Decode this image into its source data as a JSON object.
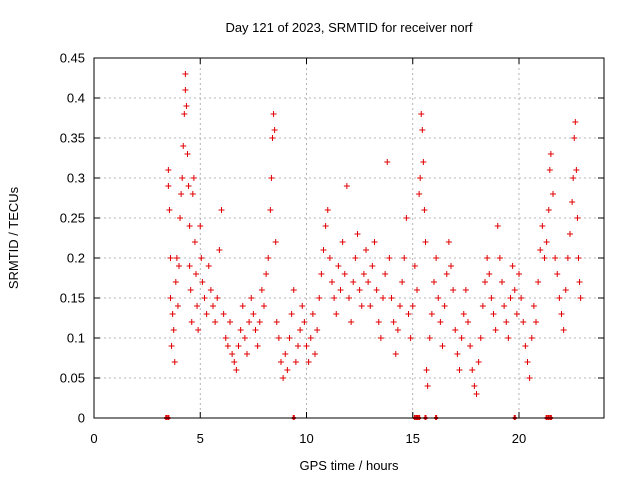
{
  "chart_data": {
    "type": "scatter",
    "title": "Day 121 of 2023, SRMTID for receiver norf",
    "xlabel": "GPS time / hours",
    "ylabel": "SRMTID / TECUs",
    "xlim": [
      0,
      24
    ],
    "ylim": [
      0,
      0.45
    ],
    "x_ticks": [
      "0",
      "5",
      "10",
      "15",
      "20"
    ],
    "y_ticks": [
      "0",
      "0.05",
      "0.1",
      "0.15",
      "0.2",
      "0.25",
      "0.3",
      "0.35",
      "0.4",
      "0.45"
    ],
    "grid": true,
    "marker": "+",
    "color": "#e00000",
    "zero_points_x": [
      3.4,
      3.5,
      9.4,
      15.1,
      15.2,
      15.3,
      15.6,
      16.1,
      19.8,
      21.3,
      21.4,
      21.5
    ],
    "series": [
      {
        "points": [
          [
            3.5,
            0.31
          ],
          [
            3.5,
            0.29
          ],
          [
            3.55,
            0.26
          ],
          [
            3.6,
            0.2
          ],
          [
            3.6,
            0.15
          ],
          [
            3.65,
            0.09
          ],
          [
            3.7,
            0.13
          ],
          [
            3.75,
            0.11
          ],
          [
            3.8,
            0.07
          ],
          [
            3.85,
            0.17
          ],
          [
            3.9,
            0.2
          ],
          [
            3.95,
            0.14
          ],
          [
            4.0,
            0.19
          ],
          [
            4.05,
            0.25
          ],
          [
            4.1,
            0.28
          ],
          [
            4.15,
            0.3
          ],
          [
            4.2,
            0.34
          ],
          [
            4.25,
            0.38
          ],
          [
            4.3,
            0.43
          ],
          [
            4.3,
            0.41
          ],
          [
            4.35,
            0.39
          ],
          [
            4.4,
            0.33
          ],
          [
            4.45,
            0.29
          ],
          [
            4.5,
            0.24
          ],
          [
            4.5,
            0.19
          ],
          [
            4.55,
            0.16
          ],
          [
            4.6,
            0.12
          ],
          [
            4.65,
            0.28
          ],
          [
            4.7,
            0.3
          ],
          [
            4.75,
            0.22
          ],
          [
            4.8,
            0.18
          ],
          [
            4.85,
            0.14
          ],
          [
            4.9,
            0.11
          ],
          [
            5.0,
            0.24
          ],
          [
            5.05,
            0.2
          ],
          [
            5.1,
            0.17
          ],
          [
            5.2,
            0.15
          ],
          [
            5.3,
            0.13
          ],
          [
            5.4,
            0.19
          ],
          [
            5.5,
            0.16
          ],
          [
            5.6,
            0.14
          ],
          [
            5.7,
            0.12
          ],
          [
            5.8,
            0.15
          ],
          [
            5.9,
            0.21
          ],
          [
            6.0,
            0.26
          ],
          [
            6.1,
            0.13
          ],
          [
            6.2,
            0.1
          ],
          [
            6.3,
            0.09
          ],
          [
            6.4,
            0.12
          ],
          [
            6.5,
            0.08
          ],
          [
            6.6,
            0.07
          ],
          [
            6.7,
            0.06
          ],
          [
            6.8,
            0.09
          ],
          [
            6.9,
            0.11
          ],
          [
            7.0,
            0.14
          ],
          [
            7.1,
            0.1
          ],
          [
            7.2,
            0.08
          ],
          [
            7.3,
            0.12
          ],
          [
            7.4,
            0.15
          ],
          [
            7.5,
            0.13
          ],
          [
            7.6,
            0.11
          ],
          [
            7.7,
            0.09
          ],
          [
            7.8,
            0.12
          ],
          [
            7.9,
            0.16
          ],
          [
            8.0,
            0.14
          ],
          [
            8.1,
            0.18
          ],
          [
            8.2,
            0.2
          ],
          [
            8.3,
            0.26
          ],
          [
            8.35,
            0.3
          ],
          [
            8.4,
            0.35
          ],
          [
            8.45,
            0.38
          ],
          [
            8.5,
            0.36
          ],
          [
            8.55,
            0.22
          ],
          [
            8.6,
            0.12
          ],
          [
            8.7,
            0.1
          ],
          [
            8.8,
            0.07
          ],
          [
            8.9,
            0.05
          ],
          [
            9.0,
            0.08
          ],
          [
            9.1,
            0.06
          ],
          [
            9.2,
            0.1
          ],
          [
            9.3,
            0.13
          ],
          [
            9.4,
            0.16
          ],
          [
            9.5,
            0.07
          ],
          [
            9.6,
            0.09
          ],
          [
            9.7,
            0.11
          ],
          [
            9.8,
            0.14
          ],
          [
            9.9,
            0.12
          ],
          [
            10.0,
            0.09
          ],
          [
            10.1,
            0.07
          ],
          [
            10.2,
            0.1
          ],
          [
            10.3,
            0.13
          ],
          [
            10.4,
            0.08
          ],
          [
            10.5,
            0.11
          ],
          [
            10.6,
            0.15
          ],
          [
            10.7,
            0.18
          ],
          [
            10.8,
            0.21
          ],
          [
            10.9,
            0.24
          ],
          [
            11.0,
            0.26
          ],
          [
            11.1,
            0.2
          ],
          [
            11.2,
            0.17
          ],
          [
            11.3,
            0.15
          ],
          [
            11.4,
            0.13
          ],
          [
            11.5,
            0.19
          ],
          [
            11.6,
            0.16
          ],
          [
            11.7,
            0.22
          ],
          [
            11.8,
            0.18
          ],
          [
            11.9,
            0.29
          ],
          [
            12.0,
            0.15
          ],
          [
            12.1,
            0.12
          ],
          [
            12.2,
            0.17
          ],
          [
            12.3,
            0.2
          ],
          [
            12.4,
            0.23
          ],
          [
            12.5,
            0.16
          ],
          [
            12.6,
            0.14
          ],
          [
            12.7,
            0.18
          ],
          [
            12.8,
            0.21
          ],
          [
            12.9,
            0.17
          ],
          [
            13.0,
            0.14
          ],
          [
            13.1,
            0.19
          ],
          [
            13.2,
            0.22
          ],
          [
            13.3,
            0.16
          ],
          [
            13.4,
            0.12
          ],
          [
            13.5,
            0.1
          ],
          [
            13.6,
            0.15
          ],
          [
            13.7,
            0.18
          ],
          [
            13.8,
            0.32
          ],
          [
            13.9,
            0.2
          ],
          [
            14.0,
            0.15
          ],
          [
            14.1,
            0.12
          ],
          [
            14.2,
            0.08
          ],
          [
            14.3,
            0.11
          ],
          [
            14.4,
            0.14
          ],
          [
            14.5,
            0.17
          ],
          [
            14.6,
            0.2
          ],
          [
            14.7,
            0.25
          ],
          [
            14.8,
            0.13
          ],
          [
            14.9,
            0.1
          ],
          [
            15.0,
            0.14
          ],
          [
            15.1,
            0.19
          ],
          [
            15.2,
            0.16
          ],
          [
            15.3,
            0.28
          ],
          [
            15.35,
            0.3
          ],
          [
            15.4,
            0.38
          ],
          [
            15.45,
            0.36
          ],
          [
            15.5,
            0.32
          ],
          [
            15.55,
            0.26
          ],
          [
            15.6,
            0.22
          ],
          [
            15.65,
            0.06
          ],
          [
            15.7,
            0.04
          ],
          [
            15.8,
            0.1
          ],
          [
            15.9,
            0.13
          ],
          [
            16.0,
            0.17
          ],
          [
            16.1,
            0.2
          ],
          [
            16.2,
            0.15
          ],
          [
            16.3,
            0.12
          ],
          [
            16.4,
            0.09
          ],
          [
            16.5,
            0.14
          ],
          [
            16.6,
            0.18
          ],
          [
            16.7,
            0.22
          ],
          [
            16.8,
            0.19
          ],
          [
            16.9,
            0.16
          ],
          [
            17.0,
            0.11
          ],
          [
            17.1,
            0.08
          ],
          [
            17.2,
            0.06
          ],
          [
            17.3,
            0.1
          ],
          [
            17.4,
            0.13
          ],
          [
            17.5,
            0.16
          ],
          [
            17.6,
            0.12
          ],
          [
            17.7,
            0.09
          ],
          [
            17.8,
            0.06
          ],
          [
            17.9,
            0.04
          ],
          [
            18.0,
            0.03
          ],
          [
            18.1,
            0.07
          ],
          [
            18.2,
            0.1
          ],
          [
            18.3,
            0.14
          ],
          [
            18.4,
            0.17
          ],
          [
            18.5,
            0.2
          ],
          [
            18.6,
            0.18
          ],
          [
            18.7,
            0.15
          ],
          [
            18.8,
            0.13
          ],
          [
            18.9,
            0.11
          ],
          [
            19.0,
            0.24
          ],
          [
            19.1,
            0.2
          ],
          [
            19.2,
            0.17
          ],
          [
            19.3,
            0.14
          ],
          [
            19.4,
            0.12
          ],
          [
            19.5,
            0.1
          ],
          [
            19.6,
            0.15
          ],
          [
            19.7,
            0.19
          ],
          [
            19.8,
            0.16
          ],
          [
            19.9,
            0.13
          ],
          [
            20.0,
            0.18
          ],
          [
            20.1,
            0.15
          ],
          [
            20.2,
            0.12
          ],
          [
            20.3,
            0.09
          ],
          [
            20.4,
            0.07
          ],
          [
            20.5,
            0.05
          ],
          [
            20.6,
            0.1
          ],
          [
            20.7,
            0.14
          ],
          [
            20.8,
            0.12
          ],
          [
            20.9,
            0.17
          ],
          [
            21.0,
            0.21
          ],
          [
            21.1,
            0.24
          ],
          [
            21.2,
            0.2
          ],
          [
            21.3,
            0.22
          ],
          [
            21.4,
            0.26
          ],
          [
            21.45,
            0.31
          ],
          [
            21.5,
            0.33
          ],
          [
            21.6,
            0.28
          ],
          [
            21.7,
            0.2
          ],
          [
            21.8,
            0.18
          ],
          [
            21.9,
            0.15
          ],
          [
            22.0,
            0.13
          ],
          [
            22.1,
            0.11
          ],
          [
            22.2,
            0.16
          ],
          [
            22.3,
            0.2
          ],
          [
            22.4,
            0.23
          ],
          [
            22.5,
            0.27
          ],
          [
            22.55,
            0.3
          ],
          [
            22.6,
            0.35
          ],
          [
            22.65,
            0.37
          ],
          [
            22.7,
            0.31
          ],
          [
            22.75,
            0.25
          ],
          [
            22.8,
            0.2
          ],
          [
            22.85,
            0.17
          ],
          [
            22.9,
            0.15
          ]
        ]
      }
    ]
  }
}
